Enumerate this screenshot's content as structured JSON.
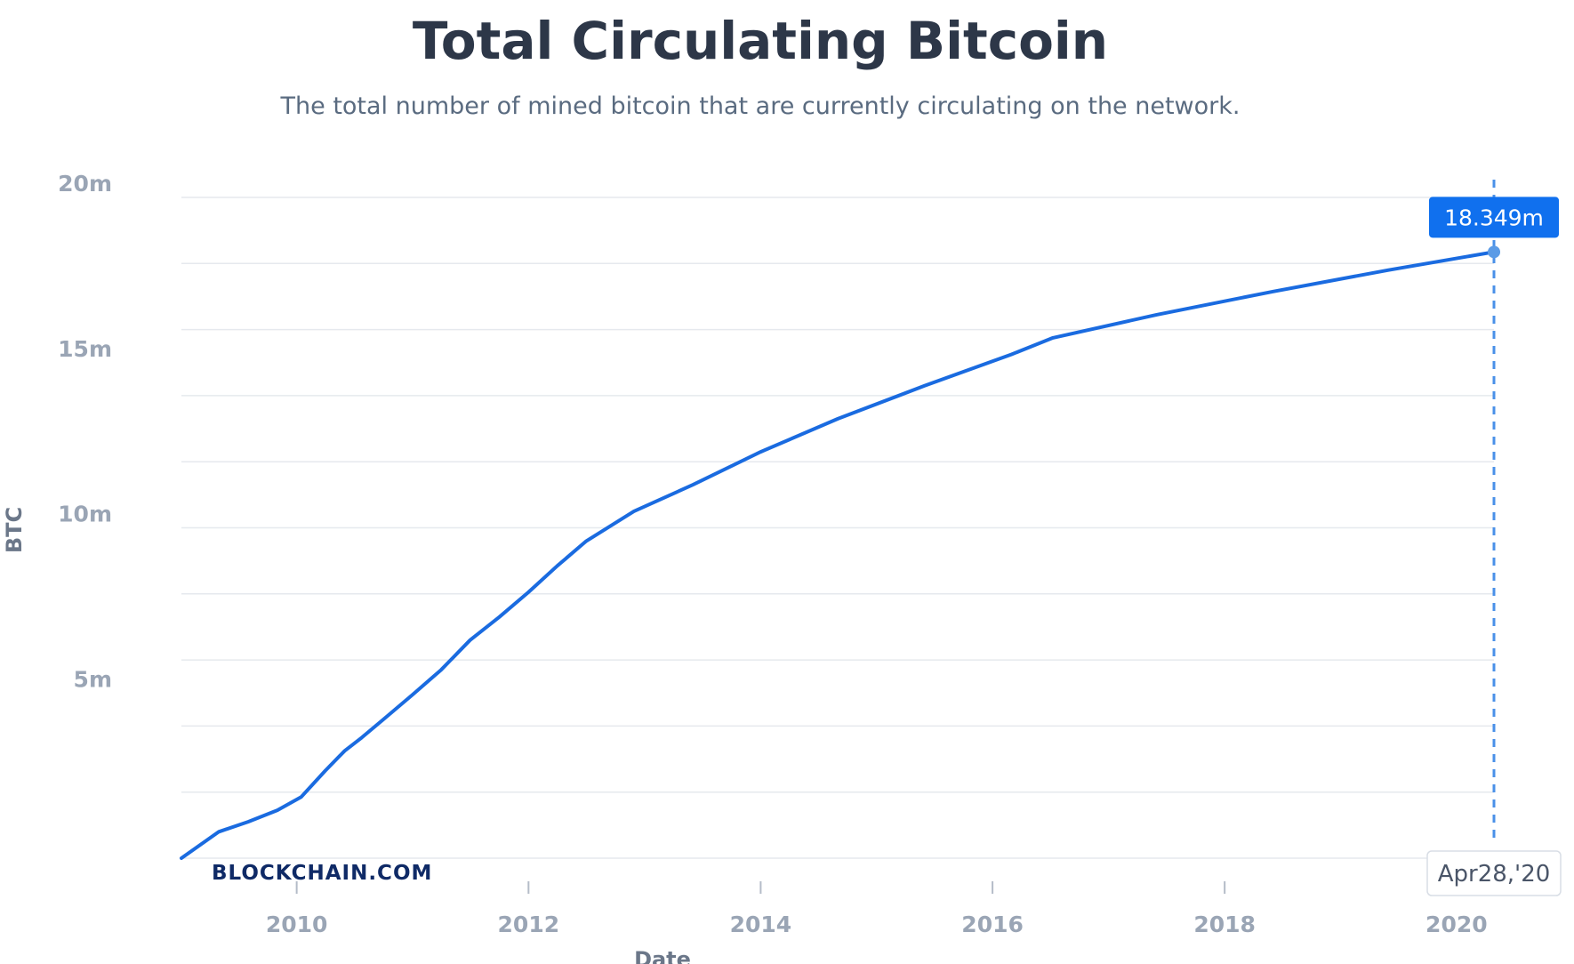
{
  "chart_data": {
    "type": "line",
    "title": "Total Circulating Bitcoin",
    "subtitle": "The total number of mined bitcoin that are currently circulating on the network.",
    "ylabel": "BTC",
    "xlabel": "Date",
    "ylim": [
      0,
      20000000
    ],
    "xlim": [
      "2009-01-03",
      "2020-04-28"
    ],
    "y_ticks": [
      {
        "value": 5000000,
        "label": "5m"
      },
      {
        "value": 10000000,
        "label": "10m"
      },
      {
        "value": 15000000,
        "label": "15m"
      },
      {
        "value": 20000000,
        "label": "20m"
      }
    ],
    "y_grid_values": [
      2000000,
      4000000,
      6000000,
      8000000,
      10000000,
      12000000,
      14000000,
      16000000,
      18000000,
      20000000
    ],
    "x_ticks": [
      {
        "value": "2010-01-01",
        "label": "2010"
      },
      {
        "value": "2012-01-01",
        "label": "2012"
      },
      {
        "value": "2014-01-01",
        "label": "2014"
      },
      {
        "value": "2016-01-01",
        "label": "2016"
      },
      {
        "value": "2018-01-01",
        "label": "2018"
      },
      {
        "value": "2020-01-01",
        "label": "2020"
      }
    ],
    "grid": true,
    "line_color": "#1a6be0",
    "series": [
      {
        "points": [
          {
            "x": "2009-01-03",
            "y": 0
          },
          {
            "x": "2009-05-01",
            "y": 800000
          },
          {
            "x": "2009-08-01",
            "y": 1100000
          },
          {
            "x": "2009-11-01",
            "y": 1450000
          },
          {
            "x": "2010-01-15",
            "y": 1850000
          },
          {
            "x": "2010-04-01",
            "y": 2650000
          },
          {
            "x": "2010-06-01",
            "y": 3250000
          },
          {
            "x": "2010-07-25",
            "y": 3650000
          },
          {
            "x": "2010-10-01",
            "y": 4200000
          },
          {
            "x": "2011-01-01",
            "y": 4950000
          },
          {
            "x": "2011-04-01",
            "y": 5700000
          },
          {
            "x": "2011-07-01",
            "y": 6600000
          },
          {
            "x": "2011-10-01",
            "y": 7300000
          },
          {
            "x": "2012-01-01",
            "y": 8050000
          },
          {
            "x": "2012-04-01",
            "y": 8850000
          },
          {
            "x": "2012-07-01",
            "y": 9600000
          },
          {
            "x": "2012-11-28",
            "y": 10500000
          },
          {
            "x": "2013-06-01",
            "y": 11300000
          },
          {
            "x": "2014-01-01",
            "y": 12300000
          },
          {
            "x": "2014-09-01",
            "y": 13300000
          },
          {
            "x": "2015-06-01",
            "y": 14300000
          },
          {
            "x": "2016-03-01",
            "y": 15250000
          },
          {
            "x": "2016-07-09",
            "y": 15750000
          },
          {
            "x": "2017-06-01",
            "y": 16450000
          },
          {
            "x": "2018-06-01",
            "y": 17150000
          },
          {
            "x": "2019-06-01",
            "y": 17800000
          },
          {
            "x": "2020-04-28",
            "y": 18349000
          }
        ]
      }
    ],
    "tooltip": {
      "value_label": "18.349m",
      "date_label": "Apr28,'20",
      "bg_color": "#1070ee"
    },
    "watermark": "BLOCKCHAIN.COM"
  }
}
